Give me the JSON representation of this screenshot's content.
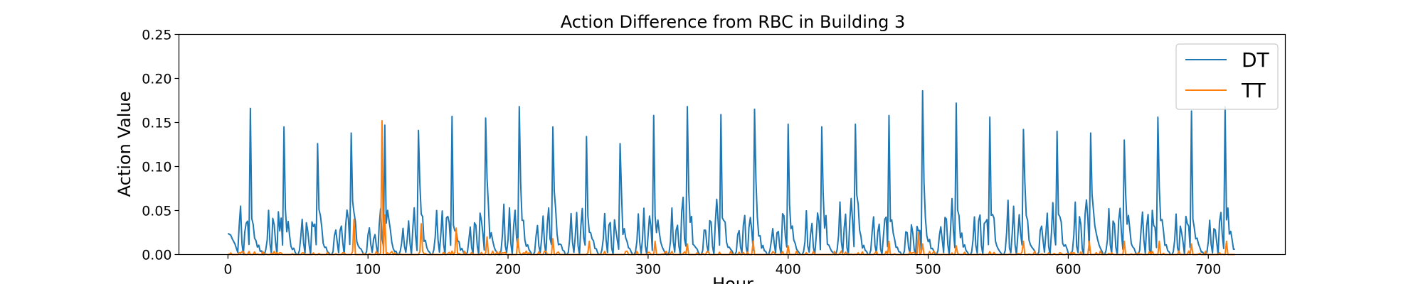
{
  "chart_data": {
    "type": "line",
    "title": "Action Difference from RBC in Building 3",
    "xlabel": "Hour",
    "ylabel": "Action Value",
    "xlim": [
      -35,
      755
    ],
    "ylim": [
      0,
      0.25
    ],
    "xticks": [
      0,
      100,
      200,
      300,
      400,
      500,
      600,
      700
    ],
    "xtick_labels": [
      "0",
      "100",
      "200",
      "300",
      "400",
      "500",
      "600",
      "700"
    ],
    "yticks": [
      0.0,
      0.05,
      0.1,
      0.15,
      0.2,
      0.25
    ],
    "ytick_labels": [
      "0.00",
      "0.05",
      "0.10",
      "0.15",
      "0.20",
      "0.25"
    ],
    "grid": false,
    "legend_position": "top-right",
    "day_peaks": [
      0.166,
      0.145,
      0.126,
      0.138,
      0.147,
      0.141,
      0.157,
      0.155,
      0.168,
      0.145,
      0.134,
      0.126,
      0.158,
      0.168,
      0.159,
      0.165,
      0.148,
      0.145,
      0.148,
      0.158,
      0.186,
      0.172,
      0.156,
      0.142,
      0.14,
      0.138,
      0.13,
      0.156,
      0.163,
      0.168
    ],
    "tt_spikes": [
      [
        90,
        0.04
      ],
      [
        110,
        0.152
      ],
      [
        112,
        0.045
      ],
      [
        138,
        0.035
      ],
      [
        163,
        0.03
      ],
      [
        185,
        0.02
      ],
      [
        207,
        0.018
      ],
      [
        232,
        0.018
      ],
      [
        258,
        0.015
      ],
      [
        305,
        0.015
      ],
      [
        328,
        0.012
      ],
      [
        375,
        0.015
      ],
      [
        400,
        0.01
      ],
      [
        472,
        0.015
      ],
      [
        493,
        0.025
      ],
      [
        496,
        0.012
      ],
      [
        520,
        0.01
      ],
      [
        568,
        0.015
      ],
      [
        615,
        0.015
      ],
      [
        640,
        0.015
      ],
      [
        665,
        0.015
      ],
      [
        688,
        0.012
      ],
      [
        713,
        0.015
      ]
    ],
    "series": [
      {
        "name": "DT",
        "color": "#1f77b4"
      },
      {
        "name": "TT",
        "color": "#ff7f0e"
      }
    ]
  }
}
